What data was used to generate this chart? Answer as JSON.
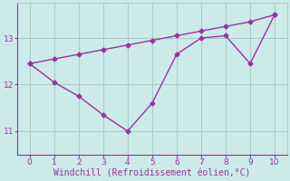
{
  "line1_x": [
    0,
    1,
    2,
    3,
    4,
    5,
    6,
    7,
    8,
    9,
    10
  ],
  "line1_y": [
    12.45,
    12.05,
    11.75,
    11.35,
    11.0,
    11.6,
    12.65,
    13.0,
    13.05,
    12.45,
    13.5
  ],
  "line2_x": [
    0,
    1,
    2,
    3,
    4,
    5,
    6,
    7,
    8,
    9,
    10
  ],
  "line2_y": [
    12.45,
    12.55,
    12.65,
    12.75,
    12.85,
    12.95,
    13.05,
    13.15,
    13.25,
    13.35,
    13.5
  ],
  "color": "#993399",
  "bg_color": "#cceaea",
  "grid_color": "#aacccc",
  "xlabel": "Windchill (Refroidissement éolien,°C)",
  "xlim": [
    -0.5,
    10.5
  ],
  "ylim": [
    10.5,
    13.75
  ],
  "yticks": [
    11,
    12,
    13
  ],
  "xticks": [
    0,
    1,
    2,
    3,
    4,
    5,
    6,
    7,
    8,
    9,
    10
  ],
  "marker": "D",
  "markersize": 2.5,
  "linewidth": 1.0,
  "xlabel_fontsize": 7.0,
  "tick_fontsize": 6.5,
  "tick_color": "#993399",
  "label_color": "#993399"
}
